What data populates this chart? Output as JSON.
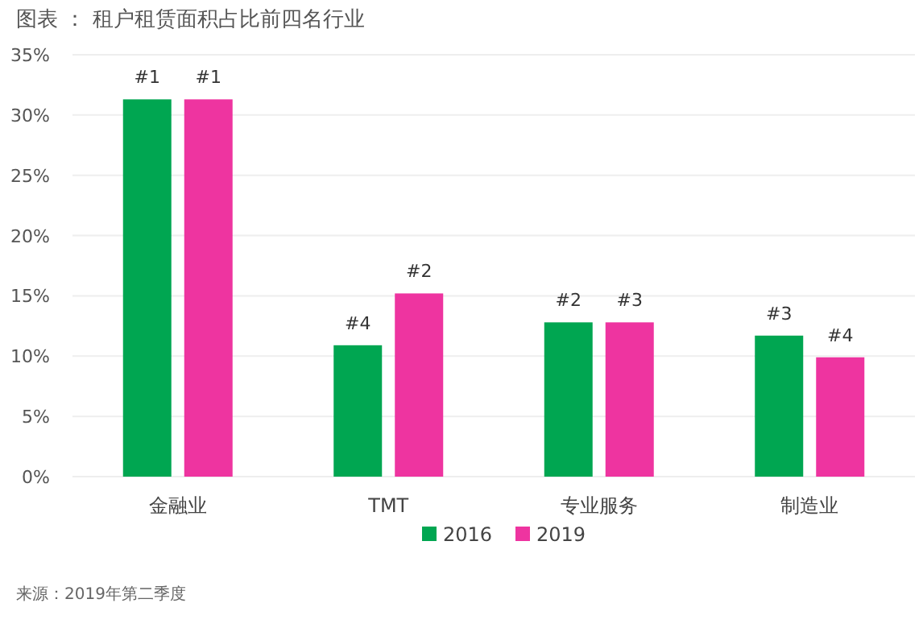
{
  "chart_data": {
    "type": "bar",
    "title": "图表 ： 租户租赁面积占比前四名行业",
    "categories": [
      "金融业",
      "TMT",
      "专业服务",
      "制造业"
    ],
    "series": [
      {
        "name": "2016",
        "color": "#00a651",
        "values": [
          31.3,
          10.9,
          12.8,
          11.7
        ]
      },
      {
        "name": "2019",
        "color": "#ee34a0",
        "values": [
          31.3,
          15.2,
          12.8,
          9.9
        ]
      }
    ],
    "ylim": [
      0,
      35
    ],
    "yticks": [
      {
        "value": 0,
        "label": "0%"
      },
      {
        "value": 5,
        "label": "5%"
      },
      {
        "value": 10,
        "label": "10%"
      },
      {
        "value": 15,
        "label": "15%"
      },
      {
        "value": 20,
        "label": "20%"
      },
      {
        "value": 25,
        "label": "25%"
      },
      {
        "value": 30,
        "label": "30%"
      },
      {
        "value": 35,
        "label": "35%"
      }
    ],
    "grid": "y",
    "legend": "bottom",
    "annotations": [
      {
        "text": "#1",
        "x": "金融业",
        "y": 31.3
      },
      {
        "text": "#1",
        "x": "金融业",
        "y": 31.3
      },
      {
        "text": "#4",
        "x": "TMT",
        "y": 10.9
      },
      {
        "text": "#2",
        "x": "TMT",
        "y": 15.2
      },
      {
        "text": "#2",
        "x": "专业服务",
        "y": 12.8
      },
      {
        "text": "#3",
        "x": "专业服务",
        "y": 12.8
      },
      {
        "text": "#3",
        "x": "制造业",
        "y": 11.7
      },
      {
        "text": "#4",
        "x": "制造业",
        "y": 9.9
      },
      "来源：2019年第二季度"
    ]
  }
}
